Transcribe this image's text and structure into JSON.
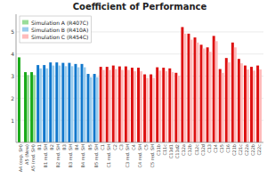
{
  "chart_data": {
    "type": "bar",
    "title": "Coefficient of Performance",
    "categories": [
      "A4 (exp. SH)",
      "A5 (New)",
      "A5 (red. SH)",
      "B1",
      "B1 red. SH",
      "B2",
      "B2 red. SH",
      "B3",
      "B3 red. SH",
      "B4",
      "B4 red. SH",
      "B5",
      "B5 red. SH",
      "C1",
      "C1 red. SH",
      "C2",
      "C3",
      "C3 red. SH",
      "C4",
      "C4 red. SH",
      "C5",
      "C5 red. SH",
      "C11b",
      "C11c",
      "C11d1",
      "C11d2",
      "C12a",
      "C12b",
      "C12c",
      "C12d",
      "C13",
      "C14",
      "C15",
      "C16",
      "C21b",
      "C21c",
      "C22a",
      "C22b",
      "C22c"
    ],
    "series": [
      {
        "values": [
          3.85,
          3.18,
          3.18,
          3.5,
          3.5,
          3.62,
          3.62,
          3.6,
          3.6,
          3.55,
          3.55,
          3.1,
          3.1,
          3.42,
          3.42,
          3.48,
          3.44,
          3.44,
          3.38,
          3.38,
          3.08,
          3.08,
          3.4,
          3.38,
          3.35,
          3.15,
          5.22,
          4.92,
          4.75,
          4.42,
          4.3,
          4.82,
          3.32,
          3.82,
          4.52,
          3.78,
          3.48,
          3.42,
          3.48
        ],
        "colors": [
          "#1aaa1a",
          "#1aaa1a",
          "#1aaa1a",
          "#1177cc",
          "#1177cc",
          "#1177cc",
          "#1177cc",
          "#1177cc",
          "#1177cc",
          "#1177cc",
          "#1177cc",
          "#1177cc",
          "#1177cc",
          "#dd1111",
          "#dd1111",
          "#dd1111",
          "#dd1111",
          "#dd1111",
          "#dd1111",
          "#dd1111",
          "#dd1111",
          "#dd1111",
          "#dd1111",
          "#dd1111",
          "#dd1111",
          "#dd1111",
          "#dd1111",
          "#dd1111",
          "#dd1111",
          "#dd1111",
          "#dd1111",
          "#dd1111",
          "#dd1111",
          "#dd1111",
          "#dd1111",
          "#dd1111",
          "#dd1111",
          "#dd1111",
          "#dd1111"
        ]
      },
      {
        "values": [
          0.0,
          3.05,
          3.05,
          3.35,
          3.35,
          3.48,
          3.48,
          3.45,
          3.45,
          3.4,
          3.4,
          2.95,
          2.95,
          3.28,
          3.28,
          3.32,
          3.28,
          3.28,
          3.22,
          3.22,
          2.92,
          2.92,
          3.25,
          3.22,
          3.18,
          3.02,
          4.92,
          4.65,
          4.52,
          4.25,
          4.1,
          4.58,
          3.15,
          3.62,
          4.3,
          3.58,
          3.3,
          3.25,
          3.3
        ],
        "colors": [
          "#99dd99",
          "#99dd99",
          "#99dd99",
          "#99ccee",
          "#99ccee",
          "#99ccee",
          "#99ccee",
          "#99ccee",
          "#99ccee",
          "#99ccee",
          "#99ccee",
          "#99ccee",
          "#99ccee",
          "#ffbbbb",
          "#ffbbbb",
          "#ffbbbb",
          "#ffbbbb",
          "#ffbbbb",
          "#ffbbbb",
          "#ffbbbb",
          "#ffbbbb",
          "#ffbbbb",
          "#ffbbbb",
          "#ffbbbb",
          "#ffbbbb",
          "#ffbbbb",
          "#ffbbbb",
          "#ffbbbb",
          "#ffbbbb",
          "#ffbbbb",
          "#ffbbbb",
          "#ffbbbb",
          "#ffbbbb",
          "#ffbbbb",
          "#ffbbbb",
          "#ffbbbb",
          "#ffbbbb",
          "#ffbbbb",
          "#ffbbbb"
        ]
      }
    ],
    "legend_entries": [
      {
        "name": "Simulation A (R407C)",
        "color": "#99dd99"
      },
      {
        "name": "Simulation B (R410A)",
        "color": "#99ccee"
      },
      {
        "name": "Simulation C (R454C)",
        "color": "#ffbbbb"
      }
    ],
    "legend": "upper left",
    "ylim": [
      0,
      5.8
    ],
    "yticks": [
      1,
      2,
      3,
      4,
      5
    ],
    "grid": true
  }
}
